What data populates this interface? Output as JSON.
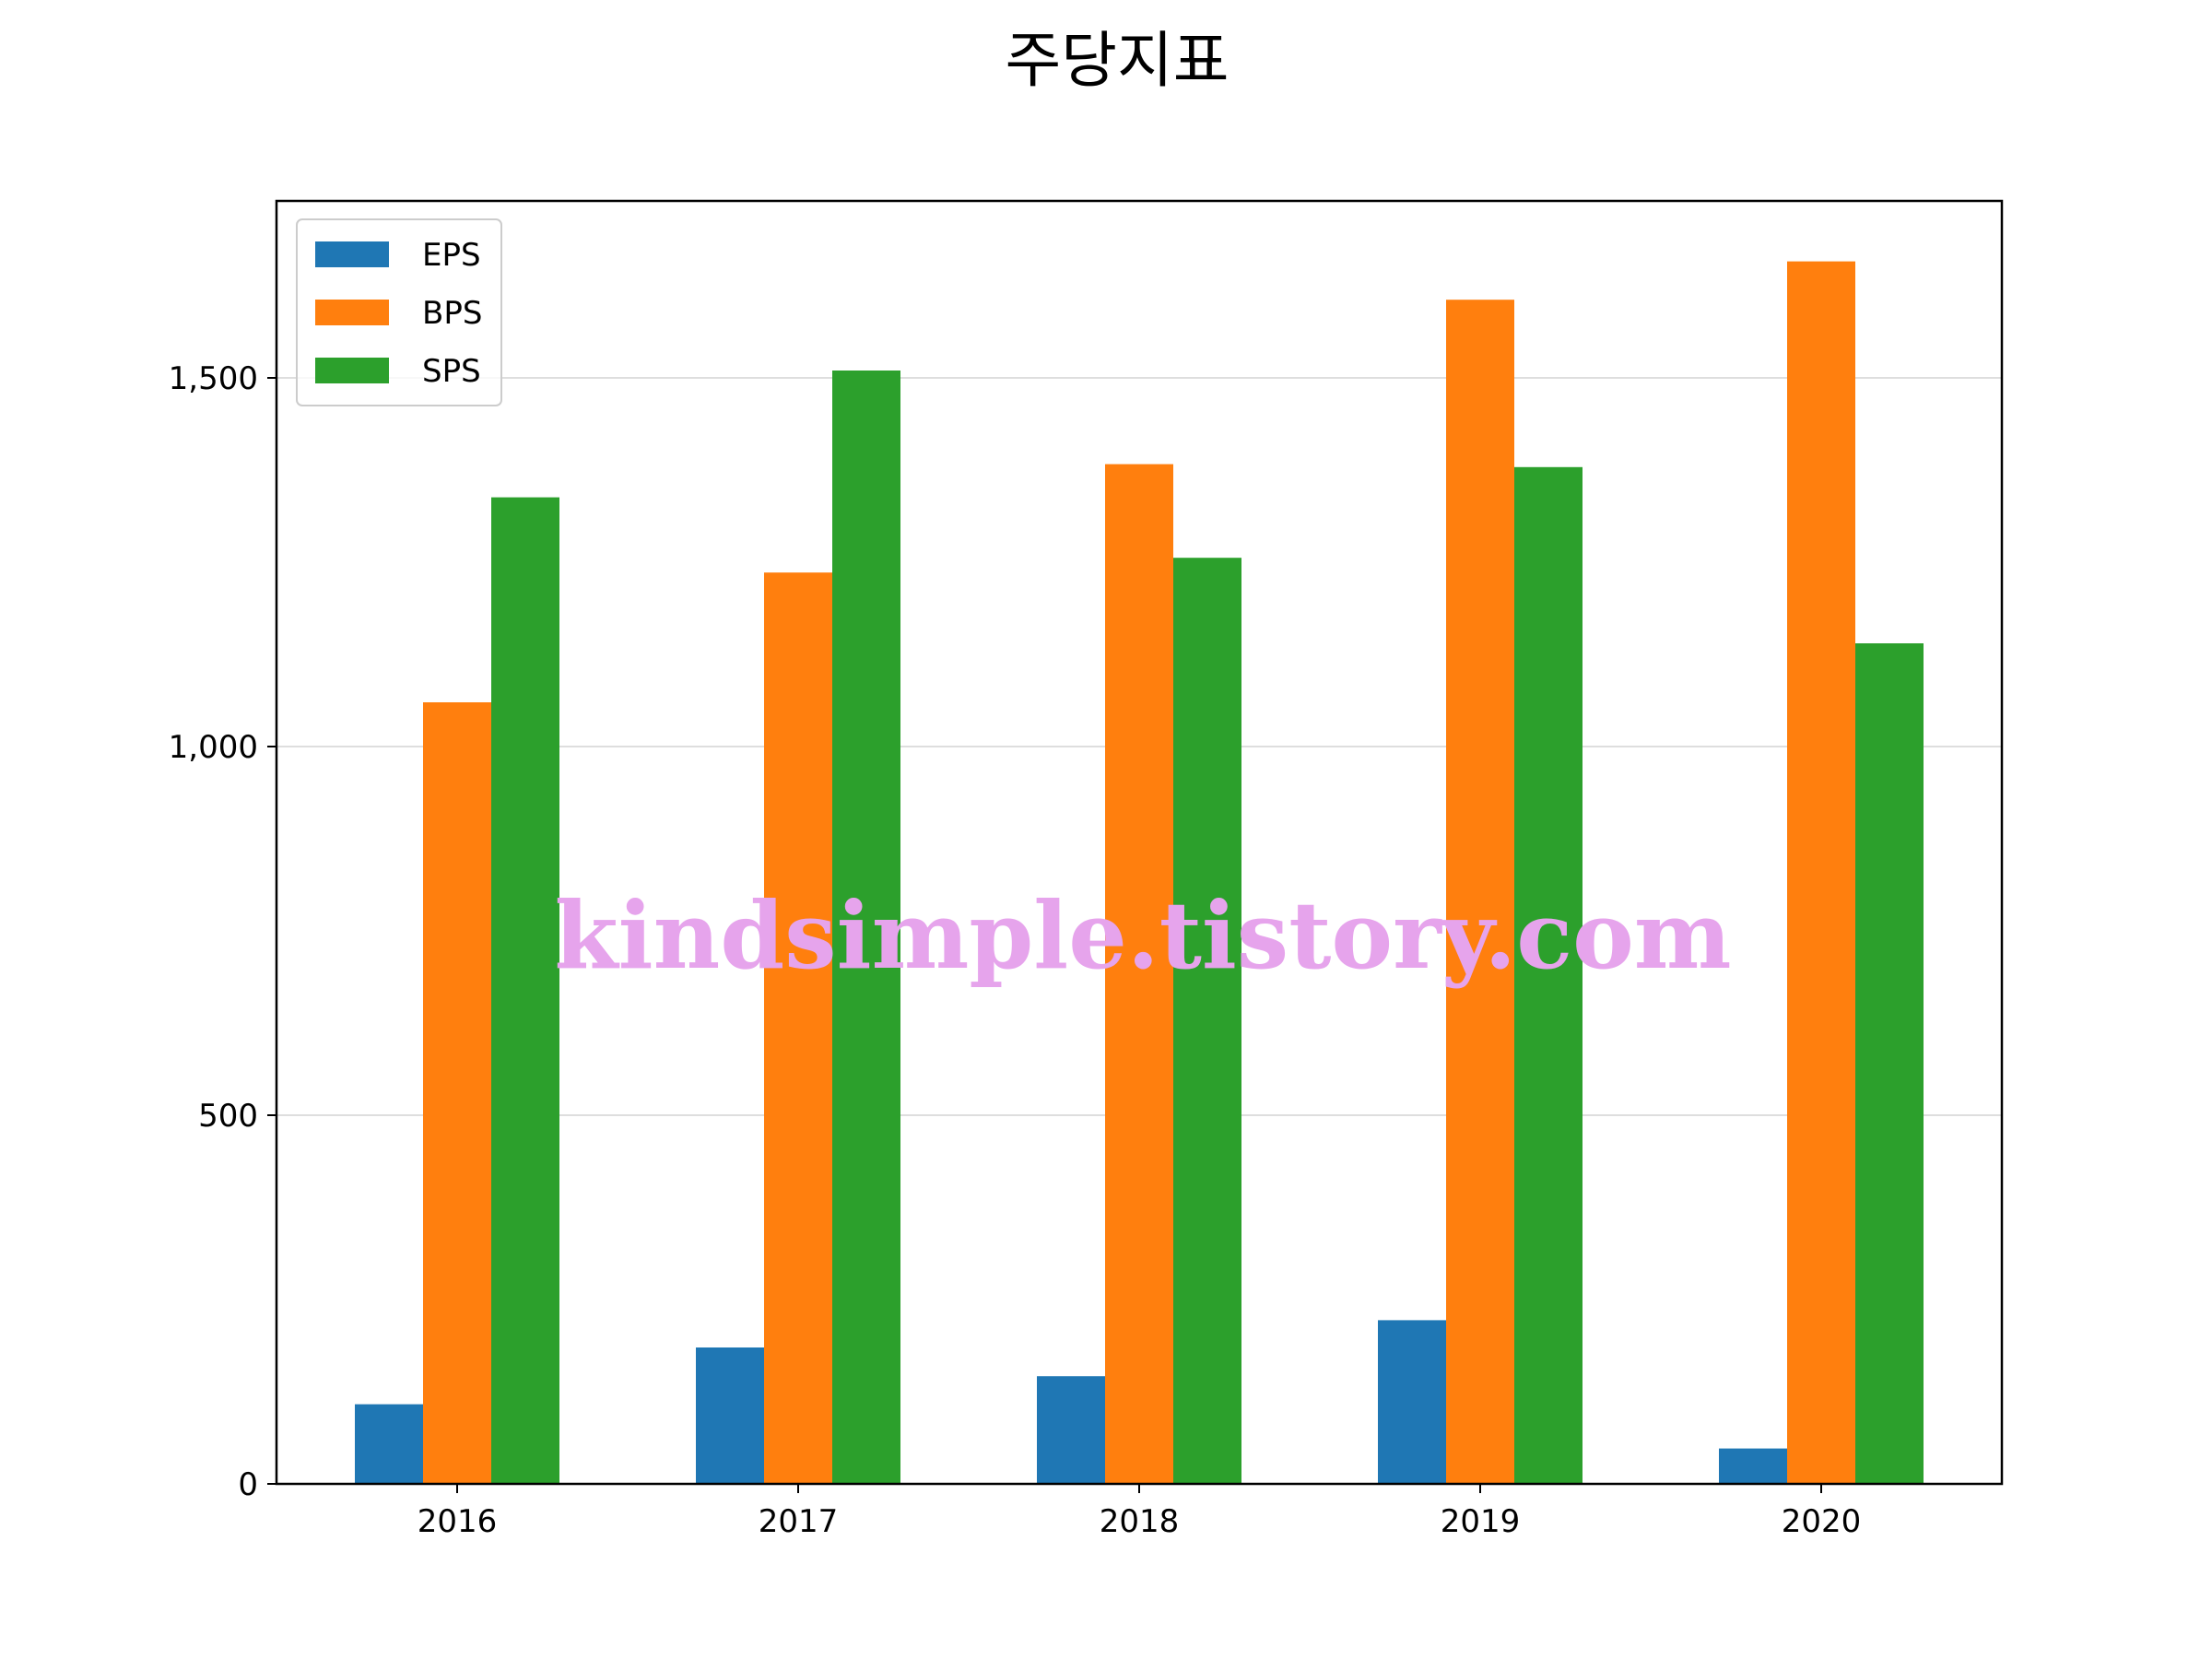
{
  "chart_data": {
    "type": "bar",
    "title": "주당지표",
    "xlabel": "",
    "ylabel": "",
    "categories": [
      "2016",
      "2017",
      "2018",
      "2019",
      "2020"
    ],
    "series": [
      {
        "name": "EPS",
        "color": "#1f77b4",
        "values": [
          108,
          185,
          146,
          222,
          48
        ]
      },
      {
        "name": "BPS",
        "color": "#ff7f0e",
        "values": [
          1060,
          1236,
          1383,
          1606,
          1658
        ]
      },
      {
        "name": "SPS",
        "color": "#2ca02c",
        "values": [
          1338,
          1510,
          1256,
          1379,
          1140
        ]
      }
    ],
    "ylim": [
      0,
      1740
    ],
    "yticks": [
      0,
      500,
      1000,
      1500
    ],
    "ytick_labels": [
      "0",
      "500",
      "1,000",
      "1,500"
    ],
    "grid": "horizontal",
    "legend_position": "upper left",
    "watermark": "kindsimple.tistory.com"
  }
}
